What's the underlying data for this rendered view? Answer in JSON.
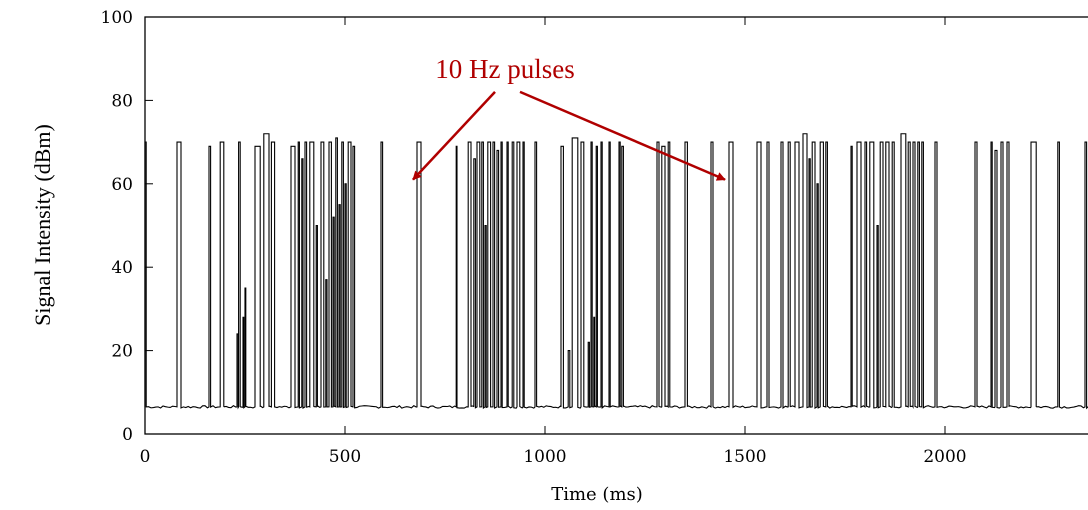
{
  "chart_data": {
    "type": "line",
    "title": "",
    "xlabel": "Time (ms)",
    "ylabel": "Signal Intensity (dBm)",
    "xlim": [
      0,
      2400
    ],
    "ylim": [
      0,
      100
    ],
    "xticks": [
      0,
      500,
      1000,
      1500,
      2000
    ],
    "yticks": [
      0,
      20,
      40,
      60,
      80,
      100
    ],
    "xtick_labels": [
      "0",
      "500",
      "1000",
      "1500",
      "2000"
    ],
    "ytick_labels": [
      "0",
      "20",
      "40",
      "60",
      "80",
      "100"
    ],
    "grid": false,
    "legend": "none",
    "baseline_dbm": 6.5,
    "line_color": "#000000",
    "annotation": {
      "text": "10 Hz pulses",
      "color": "#b00000",
      "arrow_from": [
        1000,
        83
      ],
      "arrow_targets": [
        [
          670,
          61
        ],
        [
          1450,
          61
        ]
      ]
    },
    "pulses": [
      [
        0,
        3,
        70
      ],
      [
        80,
        90,
        70
      ],
      [
        160,
        164,
        69
      ],
      [
        188,
        197,
        70
      ],
      [
        230,
        233,
        24
      ],
      [
        234,
        238,
        70
      ],
      [
        245,
        247,
        28
      ],
      [
        250,
        252,
        35
      ],
      [
        275,
        288,
        69
      ],
      [
        297,
        310,
        72
      ],
      [
        316,
        324,
        70
      ],
      [
        365,
        375,
        69
      ],
      [
        383,
        386,
        70
      ],
      [
        392,
        395,
        66
      ],
      [
        400,
        404,
        70
      ],
      [
        412,
        422,
        70
      ],
      [
        428,
        431,
        50
      ],
      [
        440,
        447,
        70
      ],
      [
        452,
        455,
        37
      ],
      [
        460,
        466,
        70
      ],
      [
        470,
        473,
        52
      ],
      [
        477,
        481,
        71
      ],
      [
        485,
        488,
        55
      ],
      [
        492,
        496,
        70
      ],
      [
        500,
        503,
        60
      ],
      [
        508,
        515,
        70
      ],
      [
        520,
        524,
        69
      ],
      [
        590,
        594,
        70
      ],
      [
        680,
        690,
        70
      ],
      [
        778,
        780,
        69
      ],
      [
        808,
        815,
        70
      ],
      [
        822,
        826,
        66
      ],
      [
        830,
        837,
        70
      ],
      [
        842,
        846,
        70
      ],
      [
        850,
        853,
        50
      ],
      [
        857,
        864,
        70
      ],
      [
        870,
        874,
        70
      ],
      [
        880,
        884,
        68
      ],
      [
        890,
        893,
        70
      ],
      [
        905,
        908,
        70
      ],
      [
        918,
        922,
        70
      ],
      [
        930,
        937,
        70
      ],
      [
        945,
        948,
        70
      ],
      [
        975,
        979,
        70
      ],
      [
        1040,
        1046,
        69
      ],
      [
        1058,
        1062,
        20
      ],
      [
        1068,
        1082,
        71
      ],
      [
        1090,
        1097,
        70
      ],
      [
        1108,
        1111,
        22
      ],
      [
        1115,
        1118,
        70
      ],
      [
        1122,
        1124,
        28
      ],
      [
        1128,
        1131,
        69
      ],
      [
        1140,
        1143,
        70
      ],
      [
        1160,
        1163,
        70
      ],
      [
        1185,
        1188,
        70
      ],
      [
        1192,
        1196,
        69
      ],
      [
        1280,
        1285,
        70
      ],
      [
        1292,
        1300,
        69
      ],
      [
        1308,
        1312,
        70
      ],
      [
        1350,
        1356,
        70
      ],
      [
        1415,
        1420,
        70
      ],
      [
        1460,
        1470,
        70
      ],
      [
        1530,
        1540,
        70
      ],
      [
        1555,
        1560,
        70
      ],
      [
        1590,
        1595,
        70
      ],
      [
        1608,
        1613,
        70
      ],
      [
        1625,
        1635,
        70
      ],
      [
        1645,
        1655,
        72
      ],
      [
        1660,
        1663,
        66
      ],
      [
        1668,
        1675,
        70
      ],
      [
        1680,
        1683,
        60
      ],
      [
        1688,
        1696,
        70
      ],
      [
        1702,
        1706,
        70
      ],
      [
        1765,
        1768,
        69
      ],
      [
        1780,
        1790,
        70
      ],
      [
        1800,
        1804,
        70
      ],
      [
        1812,
        1822,
        70
      ],
      [
        1830,
        1833,
        50
      ],
      [
        1838,
        1845,
        70
      ],
      [
        1852,
        1860,
        70
      ],
      [
        1868,
        1873,
        70
      ],
      [
        1890,
        1902,
        72
      ],
      [
        1908,
        1913,
        70
      ],
      [
        1920,
        1925,
        70
      ],
      [
        1932,
        1936,
        70
      ],
      [
        1942,
        1946,
        70
      ],
      [
        1975,
        1980,
        70
      ],
      [
        2075,
        2080,
        70
      ],
      [
        2115,
        2118,
        70
      ],
      [
        2125,
        2130,
        68
      ],
      [
        2140,
        2145,
        70
      ],
      [
        2155,
        2160,
        70
      ],
      [
        2215,
        2228,
        70
      ],
      [
        2282,
        2286,
        70
      ],
      [
        2350,
        2354,
        70
      ]
    ]
  }
}
